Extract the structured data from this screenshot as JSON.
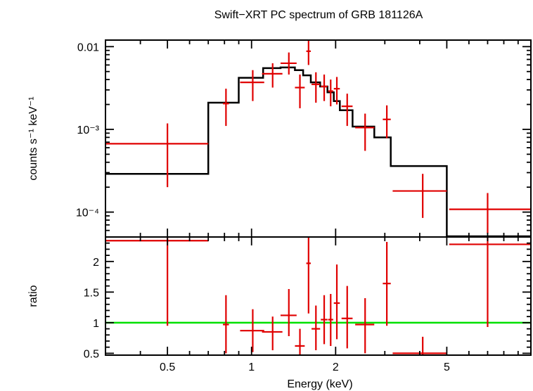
{
  "chart_data": [
    {
      "type": "scatter",
      "title": "Swift−XRT PC spectrum of GRB 181126A",
      "xlabel": "",
      "ylabel": "counts s⁻¹ keV⁻¹",
      "xscale": "log",
      "yscale": "log",
      "xlim": [
        0.3,
        10
      ],
      "ylim": [
        5e-05,
        0.012
      ],
      "yticks": [
        {
          "value": 0.01,
          "label": "0.01"
        },
        {
          "value": 0.001,
          "label": "10⁻³"
        },
        {
          "value": 0.0001,
          "label": "10⁻⁴"
        }
      ],
      "colors": {
        "data": "#e00000",
        "model": "#000000"
      },
      "series": [
        {
          "kind": "data",
          "points": [
            {
              "x": 0.5,
              "xlo": 0.3,
              "xhi": 0.7,
              "y": 0.00067,
              "ylo": 0.0002,
              "yhi": 0.00118
            },
            {
              "x": 0.81,
              "xlo": 0.79,
              "xhi": 0.83,
              "y": 0.00205,
              "ylo": 0.0011,
              "yhi": 0.0031
            },
            {
              "x": 1.01,
              "xlo": 0.91,
              "xhi": 1.11,
              "y": 0.0037,
              "ylo": 0.0022,
              "yhi": 0.0052
            },
            {
              "x": 1.19,
              "xlo": 1.09,
              "xhi": 1.29,
              "y": 0.0047,
              "ylo": 0.0032,
              "yhi": 0.0063
            },
            {
              "x": 1.36,
              "xlo": 1.27,
              "xhi": 1.45,
              "y": 0.0063,
              "ylo": 0.0046,
              "yhi": 0.0085
            },
            {
              "x": 1.49,
              "xlo": 1.43,
              "xhi": 1.55,
              "y": 0.0032,
              "ylo": 0.0018,
              "yhi": 0.0046
            },
            {
              "x": 1.6,
              "xlo": 1.57,
              "xhi": 1.63,
              "y": 0.0088,
              "ylo": 0.006,
              "yhi": 0.012
            },
            {
              "x": 1.7,
              "xlo": 1.64,
              "xhi": 1.76,
              "y": 0.0035,
              "ylo": 0.0021,
              "yhi": 0.0049
            },
            {
              "x": 1.82,
              "xlo": 1.77,
              "xhi": 1.87,
              "y": 0.0033,
              "ylo": 0.0022,
              "yhi": 0.0046
            },
            {
              "x": 1.92,
              "xlo": 1.88,
              "xhi": 1.96,
              "y": 0.0029,
              "ylo": 0.0019,
              "yhi": 0.004
            },
            {
              "x": 2.02,
              "xlo": 1.97,
              "xhi": 2.07,
              "y": 0.0031,
              "ylo": 0.002,
              "yhi": 0.0043
            },
            {
              "x": 2.2,
              "xlo": 2.1,
              "xhi": 2.3,
              "y": 0.0019,
              "ylo": 0.0011,
              "yhi": 0.0027
            },
            {
              "x": 2.55,
              "xlo": 2.35,
              "xhi": 2.75,
              "y": 0.00105,
              "ylo": 0.00055,
              "yhi": 0.00155
            },
            {
              "x": 3.05,
              "xlo": 2.95,
              "xhi": 3.15,
              "y": 0.00132,
              "ylo": 0.00078,
              "yhi": 0.00195
            },
            {
              "x": 4.1,
              "xlo": 3.2,
              "xhi": 5.0,
              "y": 0.00018,
              "ylo": 8.5e-05,
              "yhi": 0.00029
            },
            {
              "x": 7.0,
              "xlo": 5.1,
              "xhi": 10.0,
              "y": 0.000108,
              "ylo": 5.5e-05,
              "yhi": 0.00017
            }
          ]
        },
        {
          "kind": "model",
          "steps": [
            {
              "xlo": 0.3,
              "xhi": 0.7,
              "y": 0.00029
            },
            {
              "xlo": 0.7,
              "xhi": 0.9,
              "y": 0.0021
            },
            {
              "xlo": 0.9,
              "xhi": 1.1,
              "y": 0.0042
            },
            {
              "xlo": 1.1,
              "xhi": 1.27,
              "y": 0.0055
            },
            {
              "xlo": 1.27,
              "xhi": 1.43,
              "y": 0.0056
            },
            {
              "xlo": 1.43,
              "xhi": 1.53,
              "y": 0.0052
            },
            {
              "xlo": 1.53,
              "xhi": 1.63,
              "y": 0.0045
            },
            {
              "xlo": 1.63,
              "xhi": 1.76,
              "y": 0.0037
            },
            {
              "xlo": 1.76,
              "xhi": 1.87,
              "y": 0.0033
            },
            {
              "xlo": 1.87,
              "xhi": 1.97,
              "y": 0.0028
            },
            {
              "xlo": 1.97,
              "xhi": 2.07,
              "y": 0.0022
            },
            {
              "xlo": 2.07,
              "xhi": 2.3,
              "y": 0.0017
            },
            {
              "xlo": 2.3,
              "xhi": 2.75,
              "y": 0.00108
            },
            {
              "xlo": 2.75,
              "xhi": 3.15,
              "y": 0.0008
            },
            {
              "xlo": 3.15,
              "xhi": 5.0,
              "y": 0.00036
            },
            {
              "xlo": 5.0,
              "xhi": 10.0,
              "y": 4.4e-05
            }
          ]
        }
      ]
    },
    {
      "type": "scatter",
      "xlabel": "Energy (keV)",
      "ylabel": "ratio",
      "xscale": "log",
      "yscale": "linear",
      "xlim": [
        0.3,
        10
      ],
      "ylim": [
        0.47,
        2.4
      ],
      "xticks": [
        {
          "value": 0.5,
          "label": "0.5"
        },
        {
          "value": 1,
          "label": "1"
        },
        {
          "value": 2,
          "label": "2"
        },
        {
          "value": 5,
          "label": "5"
        }
      ],
      "yticks": [
        {
          "value": 0.5,
          "label": "0.5"
        },
        {
          "value": 1,
          "label": "1"
        },
        {
          "value": 1.5,
          "label": "1.5"
        },
        {
          "value": 2,
          "label": "2"
        }
      ],
      "reference_line": 1,
      "colors": {
        "data": "#e00000",
        "reference": "#00e000"
      },
      "series": [
        {
          "kind": "data",
          "points": [
            {
              "x": 0.5,
              "xlo": 0.3,
              "xhi": 0.7,
              "y": 2.34,
              "ylo": 0.95,
              "yhi": 2.4
            },
            {
              "x": 0.81,
              "xlo": 0.79,
              "xhi": 0.83,
              "y": 0.97,
              "ylo": 0.5,
              "yhi": 1.45
            },
            {
              "x": 1.01,
              "xlo": 0.91,
              "xhi": 1.11,
              "y": 0.87,
              "ylo": 0.52,
              "yhi": 1.22
            },
            {
              "x": 1.19,
              "xlo": 1.09,
              "xhi": 1.29,
              "y": 0.85,
              "ylo": 0.55,
              "yhi": 1.1
            },
            {
              "x": 1.36,
              "xlo": 1.27,
              "xhi": 1.45,
              "y": 1.12,
              "ylo": 0.78,
              "yhi": 1.55
            },
            {
              "x": 1.49,
              "xlo": 1.43,
              "xhi": 1.55,
              "y": 0.62,
              "ylo": 0.47,
              "yhi": 0.9
            },
            {
              "x": 1.6,
              "xlo": 1.57,
              "xhi": 1.63,
              "y": 1.97,
              "ylo": 1.15,
              "yhi": 2.4
            },
            {
              "x": 1.7,
              "xlo": 1.64,
              "xhi": 1.76,
              "y": 0.9,
              "ylo": 0.55,
              "yhi": 1.28
            },
            {
              "x": 1.82,
              "xlo": 1.77,
              "xhi": 1.87,
              "y": 1.05,
              "ylo": 0.65,
              "yhi": 1.45
            },
            {
              "x": 1.92,
              "xlo": 1.88,
              "xhi": 1.96,
              "y": 1.05,
              "ylo": 0.62,
              "yhi": 1.47
            },
            {
              "x": 2.02,
              "xlo": 1.97,
              "xhi": 2.07,
              "y": 1.32,
              "ylo": 0.73,
              "yhi": 1.95
            },
            {
              "x": 2.2,
              "xlo": 2.1,
              "xhi": 2.3,
              "y": 1.07,
              "ylo": 0.58,
              "yhi": 1.6
            },
            {
              "x": 2.55,
              "xlo": 2.35,
              "xhi": 2.75,
              "y": 0.97,
              "ylo": 0.5,
              "yhi": 1.4
            },
            {
              "x": 3.05,
              "xlo": 2.95,
              "xhi": 3.15,
              "y": 1.64,
              "ylo": 0.95,
              "yhi": 2.32
            },
            {
              "x": 4.1,
              "xlo": 3.2,
              "xhi": 5.0,
              "y": 0.5,
              "ylo": 0.47,
              "yhi": 0.77
            },
            {
              "x": 7.0,
              "xlo": 5.1,
              "xhi": 10.0,
              "y": 2.28,
              "ylo": 0.93,
              "yhi": 2.4
            }
          ]
        }
      ]
    }
  ]
}
